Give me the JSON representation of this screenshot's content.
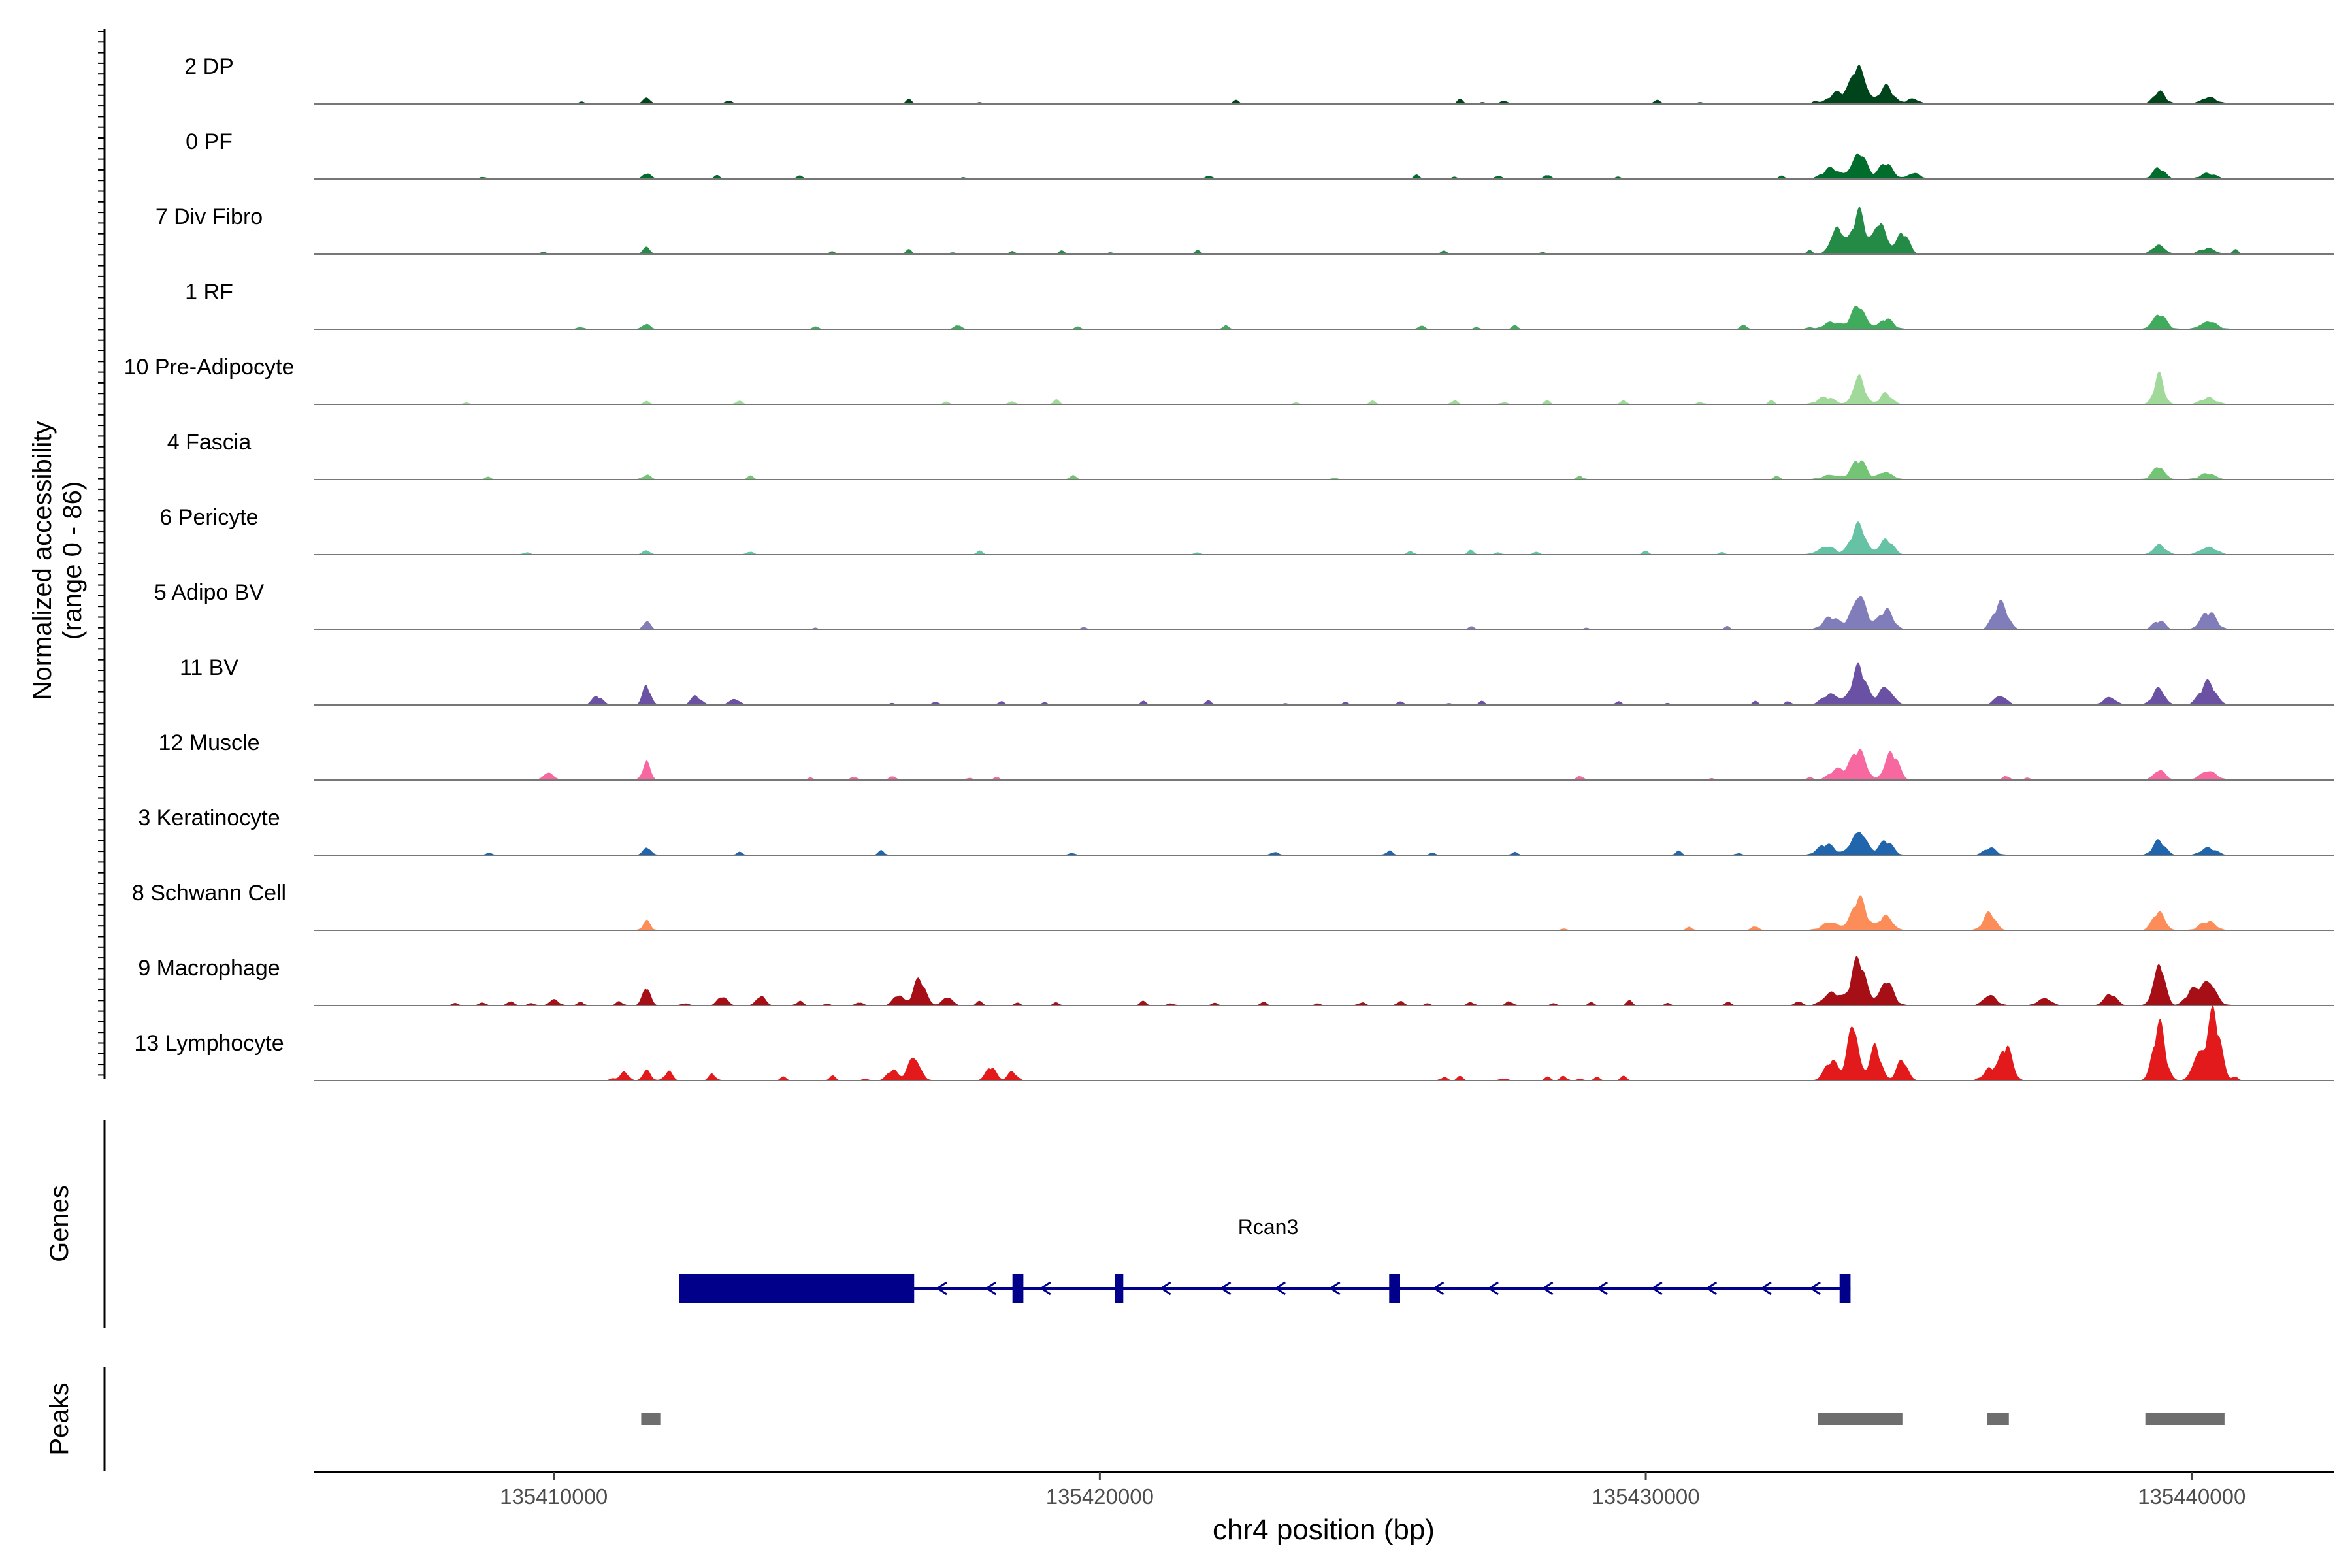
{
  "chart_data": {
    "type": "area",
    "title": "",
    "ylabel_line1": "Normalized accessibility",
    "ylabel_line2": "(range 0 - 86)",
    "y_range": [
      0,
      86
    ],
    "xlabel": "chr4 position (bp)",
    "xlim": [
      135405600,
      135442600
    ],
    "x_ticks": [
      135410000,
      135420000,
      135430000,
      135440000
    ],
    "x_tick_labels": [
      "135410000",
      "135420000",
      "135430000",
      "135440000"
    ],
    "tracks": [
      {
        "name": "2 DP",
        "color": "#00441b",
        "peaks": [
          [
            135411700,
            8,
            70
          ],
          [
            135433900,
            46,
            130
          ],
          [
            135434400,
            20,
            120
          ],
          [
            135433500,
            12,
            150
          ],
          [
            135434900,
            6,
            120
          ],
          [
            135439400,
            14,
            110
          ],
          [
            135440300,
            8,
            140
          ]
        ],
        "blips": [
          135410500,
          135413200,
          135416500,
          135417800,
          135422500,
          135426600,
          135427000,
          135427400,
          135430200,
          135431000,
          135433100
        ]
      },
      {
        "name": "0 PF",
        "color": "#006d2c",
        "peaks": [
          [
            135411700,
            7,
            70
          ],
          [
            135433900,
            32,
            130
          ],
          [
            135434400,
            18,
            120
          ],
          [
            135433400,
            12,
            150
          ],
          [
            135434900,
            7,
            120
          ],
          [
            135439400,
            12,
            110
          ],
          [
            135440300,
            6,
            140
          ]
        ],
        "blips": [
          135408700,
          135413000,
          135414500,
          135417500,
          135422000,
          135425800,
          135426500,
          135427300,
          135428200,
          135429500,
          135432500
        ]
      },
      {
        "name": "7 Div Fibro",
        "color": "#238b45",
        "peaks": [
          [
            135411700,
            7,
            70
          ],
          [
            135433500,
            35,
            110
          ],
          [
            135433900,
            46,
            120
          ],
          [
            135434300,
            40,
            110
          ],
          [
            135434700,
            25,
            110
          ],
          [
            135439400,
            12,
            110
          ],
          [
            135440300,
            7,
            140
          ]
        ],
        "blips": [
          135409800,
          135415100,
          135416500,
          135417300,
          135418400,
          135419300,
          135420200,
          135421800,
          135426300,
          135428100,
          135433000,
          135440800
        ]
      },
      {
        "name": "1 RF",
        "color": "#41ab5d",
        "peaks": [
          [
            135411700,
            7,
            70
          ],
          [
            135433900,
            28,
            130
          ],
          [
            135434400,
            12,
            120
          ],
          [
            135433400,
            8,
            150
          ],
          [
            135439400,
            18,
            120
          ],
          [
            135440300,
            10,
            140
          ]
        ],
        "blips": [
          135410500,
          135414800,
          135417400,
          135419600,
          135422300,
          135425900,
          135426900,
          135427600,
          135431800,
          135433000
        ]
      },
      {
        "name": "10 Pre-Adipocyte",
        "color": "#a1d99b",
        "peaks": [
          [
            135433900,
            36,
            100
          ],
          [
            135434400,
            12,
            110
          ],
          [
            135433300,
            8,
            150
          ],
          [
            135439400,
            32,
            90
          ],
          [
            135440300,
            7,
            140
          ]
        ],
        "blips": [
          135408400,
          135411700,
          135413400,
          135417200,
          135418400,
          135419200,
          135423600,
          135425000,
          135426500,
          135427400,
          135428200,
          135429600,
          135431000,
          135432300
        ]
      },
      {
        "name": "4 Fascia",
        "color": "#74c476",
        "peaks": [
          [
            135411700,
            5,
            70
          ],
          [
            135433900,
            22,
            130
          ],
          [
            135434400,
            10,
            120
          ],
          [
            135433400,
            6,
            150
          ],
          [
            135439400,
            16,
            110
          ],
          [
            135440300,
            7,
            140
          ]
        ],
        "blips": [
          135408800,
          135413600,
          135419500,
          135424300,
          135428800,
          135432400
        ]
      },
      {
        "name": "6 Pericyte",
        "color": "#66c2a4",
        "peaks": [
          [
            135411700,
            5,
            70
          ],
          [
            135433900,
            35,
            130
          ],
          [
            135434400,
            18,
            120
          ],
          [
            135433300,
            10,
            150
          ],
          [
            135439400,
            12,
            110
          ],
          [
            135440300,
            10,
            140
          ]
        ],
        "blips": [
          135409500,
          135413600,
          135417800,
          135421800,
          135425700,
          135426800,
          135427300,
          135428000,
          135430000,
          135431400
        ]
      },
      {
        "name": "5 Adipo BV",
        "color": "#807dba",
        "peaks": [
          [
            135411700,
            10,
            70
          ],
          [
            135433900,
            44,
            130
          ],
          [
            135434400,
            22,
            130
          ],
          [
            135433400,
            14,
            150
          ],
          [
            135436500,
            30,
            130
          ],
          [
            135439400,
            10,
            110
          ],
          [
            135440300,
            20,
            140
          ]
        ],
        "blips": [
          135414800,
          135419700,
          135426800,
          135428900,
          135431500
        ]
      },
      {
        "name": "11 BV",
        "color": "#6a51a3",
        "peaks": [
          [
            135411700,
            22,
            70
          ],
          [
            135410800,
            10,
            90
          ],
          [
            135412600,
            10,
            90
          ],
          [
            135413300,
            8,
            90
          ],
          [
            135433900,
            42,
            130
          ],
          [
            135434400,
            22,
            130
          ],
          [
            135433400,
            14,
            150
          ],
          [
            135436500,
            12,
            110
          ],
          [
            135439400,
            20,
            110
          ],
          [
            135440300,
            26,
            140
          ],
          [
            135438500,
            10,
            110
          ]
        ],
        "blips": [
          135416200,
          135417000,
          135418200,
          135419000,
          135420800,
          135422000,
          135423400,
          135424500,
          135425500,
          135426400,
          135427000,
          135429500,
          135430400,
          135432000,
          135432600
        ]
      },
      {
        "name": "12 Muscle",
        "color": "#f768a1",
        "peaks": [
          [
            135411700,
            22,
            70
          ],
          [
            135409900,
            10,
            90
          ],
          [
            135433900,
            35,
            130
          ],
          [
            135434500,
            32,
            120
          ],
          [
            135433500,
            12,
            150
          ],
          [
            135439400,
            12,
            110
          ],
          [
            135440300,
            12,
            140
          ]
        ],
        "blips": [
          135414700,
          135415500,
          135416200,
          135417600,
          135418100,
          135428800,
          135431200,
          135433000,
          135436600,
          135437000
        ]
      },
      {
        "name": "3 Keratinocyte",
        "color": "#2166ac",
        "peaks": [
          [
            135411700,
            10,
            70
          ],
          [
            135433900,
            32,
            130
          ],
          [
            135434400,
            16,
            120
          ],
          [
            135433300,
            12,
            150
          ],
          [
            135436300,
            8,
            110
          ],
          [
            135439400,
            16,
            110
          ],
          [
            135440300,
            8,
            140
          ]
        ],
        "blips": [
          135408800,
          135413400,
          135416000,
          135419500,
          135423200,
          135425300,
          135426100,
          135427600,
          135430600,
          135431700
        ]
      },
      {
        "name": "8 Schwann Cell",
        "color": "#fc8d59",
        "peaks": [
          [
            135411700,
            10,
            70
          ],
          [
            135433900,
            36,
            130
          ],
          [
            135434400,
            18,
            120
          ],
          [
            135433400,
            10,
            150
          ],
          [
            135436300,
            20,
            110
          ],
          [
            135439400,
            22,
            110
          ],
          [
            135440300,
            10,
            140
          ]
        ],
        "blips": [
          135428500,
          135430800,
          135432000
        ]
      },
      {
        "name": "9 Macrophage",
        "color": "#a50f15",
        "peaks": [
          [
            135411700,
            22,
            70
          ],
          [
            135410000,
            8,
            80
          ],
          [
            135413100,
            10,
            80
          ],
          [
            135413800,
            12,
            80
          ],
          [
            135416700,
            30,
            110
          ],
          [
            135416300,
            12,
            90
          ],
          [
            135417200,
            10,
            90
          ],
          [
            135433900,
            52,
            130
          ],
          [
            135434400,
            30,
            120
          ],
          [
            135433400,
            16,
            150
          ],
          [
            135436300,
            14,
            110
          ],
          [
            135437300,
            10,
            110
          ],
          [
            135438500,
            14,
            110
          ],
          [
            135439400,
            54,
            100
          ],
          [
            135440300,
            32,
            130
          ],
          [
            135440000,
            16,
            110
          ]
        ],
        "blips": [
          135408200,
          135408700,
          135409200,
          135409600,
          135410500,
          135411200,
          135412400,
          135413000,
          135414500,
          135415000,
          135415600,
          135417800,
          135418500,
          135419200,
          135420800,
          135421300,
          135422100,
          135423000,
          135424000,
          135424800,
          135425500,
          135426000,
          135426800,
          135427500,
          135428300,
          135429000,
          135429700,
          135430400,
          135431500,
          135432800
        ]
      },
      {
        "name": "13 Lymphocyte",
        "color": "#e31a1c",
        "peaks": [
          [
            135411700,
            14,
            70
          ],
          [
            135411300,
            10,
            70
          ],
          [
            135412100,
            10,
            70
          ],
          [
            135412900,
            8,
            60
          ],
          [
            135416600,
            30,
            110
          ],
          [
            135416200,
            12,
            90
          ],
          [
            135418000,
            16,
            90
          ],
          [
            135418400,
            10,
            80
          ],
          [
            135433800,
            70,
            100
          ],
          [
            135434200,
            40,
            100
          ],
          [
            135434700,
            24,
            100
          ],
          [
            135433400,
            22,
            120
          ],
          [
            135436600,
            40,
            110
          ],
          [
            135436300,
            14,
            90
          ],
          [
            135439400,
            62,
            110
          ],
          [
            135440400,
            76,
            120
          ],
          [
            135440100,
            30,
            100
          ]
        ],
        "blips": [
          135411100,
          135414200,
          135415100,
          135415700,
          135426300,
          135426600,
          135427400,
          135428200,
          135428500,
          135428800,
          135429100,
          135429600,
          135436100,
          135440800
        ]
      }
    ],
    "genes": {
      "label": "Genes",
      "gene_name": "Rcan3",
      "color": "#00008b",
      "strand": "-",
      "span": [
        135412300,
        135433750
      ],
      "exons": [
        [
          135412300,
          135416600
        ],
        [
          135418400,
          135418600
        ],
        [
          135420280,
          135420430
        ],
        [
          135425300,
          135425500
        ],
        [
          135433550,
          135433750
        ]
      ],
      "arrow_positions": [
        135417100,
        135418000,
        135419000,
        135421200,
        135422300,
        135423300,
        135424300,
        135426200,
        135427200,
        135428200,
        135429200,
        135430200,
        135431200,
        135432200,
        135433100
      ]
    },
    "peaks_track": {
      "label": "Peaks",
      "color": "#6e6e6e",
      "regions": [
        [
          135411600,
          135411950
        ],
        [
          135433150,
          135434700
        ],
        [
          135436250,
          135436650
        ],
        [
          135439150,
          135440600
        ]
      ]
    }
  }
}
